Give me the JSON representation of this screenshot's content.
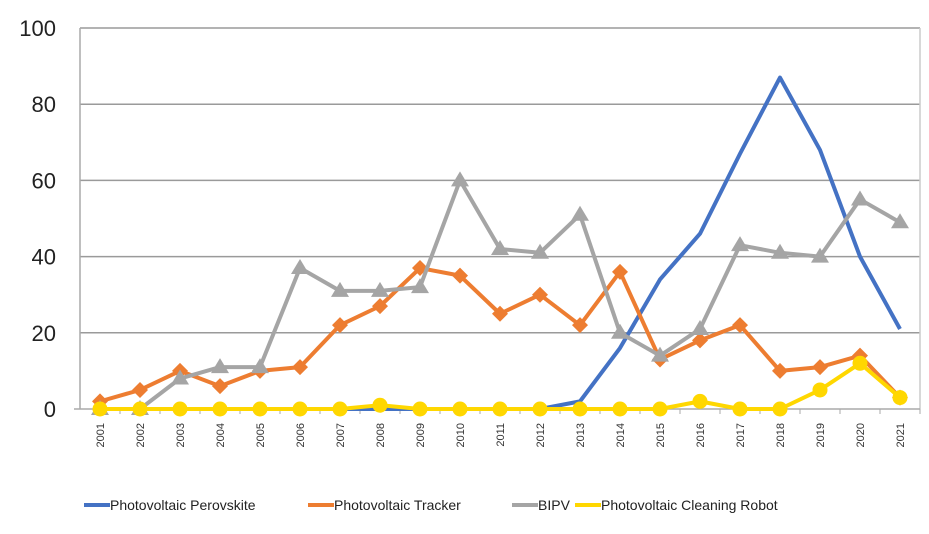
{
  "chart_data": {
    "type": "line",
    "title": "",
    "xlabel": "",
    "ylabel": "",
    "ylim": [
      0,
      100
    ],
    "yticks": [
      0,
      20,
      40,
      60,
      80,
      100
    ],
    "grid": true,
    "legend_position": "bottom",
    "categories": [
      "2001",
      "2002",
      "2003",
      "2004",
      "2005",
      "2006",
      "2007",
      "2008",
      "2009",
      "2010",
      "2011",
      "2012",
      "2013",
      "2014",
      "2015",
      "2016",
      "2017",
      "2018",
      "2019",
      "2020",
      "2021"
    ],
    "series": [
      {
        "name": "Photovoltaic Perovskite",
        "color": "#4472C4",
        "marker": "none",
        "values": [
          0,
          0,
          0,
          0,
          0,
          0,
          0,
          0,
          0,
          0,
          0,
          0,
          2,
          16,
          34,
          46,
          67,
          87,
          68,
          40,
          21
        ]
      },
      {
        "name": "Photovoltaic Tracker",
        "color": "#ED7D31",
        "marker": "diamond",
        "values": [
          2,
          5,
          10,
          6,
          10,
          11,
          22,
          27,
          37,
          35,
          25,
          30,
          22,
          36,
          13,
          18,
          22,
          10,
          11,
          14,
          3
        ]
      },
      {
        "name": "BIPV",
        "color": "#A5A5A5",
        "marker": "triangle",
        "values": [
          0,
          0,
          8,
          11,
          11,
          37,
          31,
          31,
          32,
          60,
          42,
          41,
          51,
          20,
          14,
          21,
          43,
          41,
          40,
          55,
          49
        ]
      },
      {
        "name": "Photovoltaic Cleaning Robot",
        "color": "#FFD700",
        "marker": "circle",
        "values": [
          0,
          0,
          0,
          0,
          0,
          0,
          0,
          1,
          0,
          0,
          0,
          0,
          0,
          0,
          0,
          2,
          0,
          0,
          5,
          12,
          3
        ]
      }
    ]
  }
}
